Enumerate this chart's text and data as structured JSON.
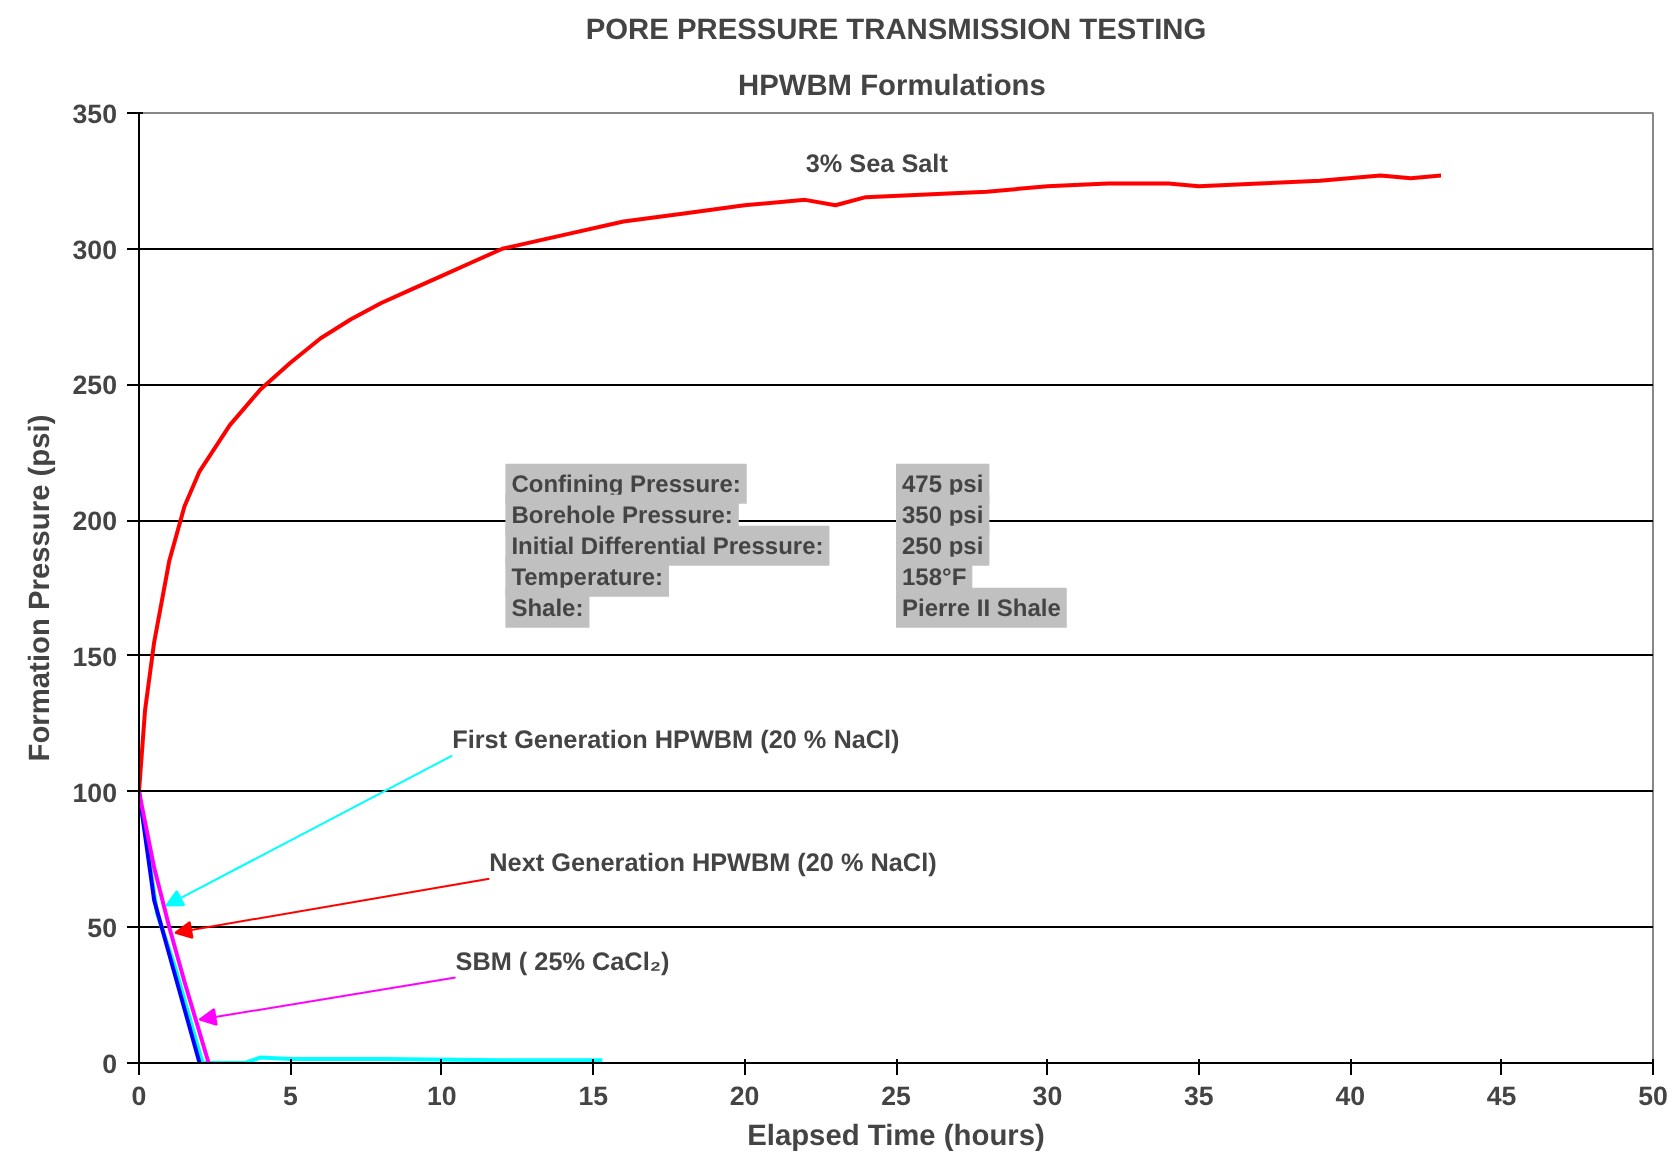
{
  "chart_data": {
    "type": "line",
    "title": "PORE PRESSURE TRANSMISSION TESTING",
    "subtitle": "HPWBM  Formulations",
    "xlabel": "Elapsed Time (hours)",
    "ylabel": "Formation Pressure (psi)",
    "xlim": [
      0,
      50
    ],
    "ylim": [
      0,
      350
    ],
    "xticks": [
      0,
      5,
      10,
      15,
      20,
      25,
      30,
      35,
      40,
      45,
      50
    ],
    "yticks": [
      0,
      50,
      100,
      150,
      200,
      250,
      300,
      350
    ],
    "grid": "y",
    "marker": "none",
    "line_style": "solid",
    "series": [
      {
        "color": "#ff0000",
        "x": [
          0,
          0.2,
          0.5,
          1,
          1.5,
          2,
          3,
          4,
          5,
          6,
          7,
          8,
          9,
          10,
          11,
          12,
          14,
          16,
          18,
          20,
          22,
          23,
          24,
          26,
          28,
          30,
          32,
          34,
          35,
          37,
          39,
          41,
          42,
          43
        ],
        "values": [
          100,
          130,
          155,
          185,
          205,
          218,
          235,
          248,
          258,
          267,
          274,
          280,
          285,
          290,
          295,
          300,
          305,
          310,
          313,
          316,
          318,
          316,
          319,
          320,
          321,
          323,
          324,
          324,
          323,
          324,
          325,
          327,
          326,
          327
        ]
      },
      {
        "color": "#00ffff",
        "x": [
          0,
          0.6,
          1.2,
          2.1,
          3.5,
          4,
          5,
          8,
          12,
          15.3
        ],
        "values": [
          100,
          55,
          35,
          0,
          0,
          2,
          1.5,
          1.5,
          1,
          1
        ]
      },
      {
        "color": "#0000ff",
        "x": [
          0,
          0.5,
          1,
          1.5,
          2
        ],
        "values": [
          100,
          60,
          40,
          20,
          0
        ]
      },
      {
        "color": "#ff00ff",
        "x": [
          0,
          0.5,
          1,
          1.5,
          1.9,
          2.3
        ],
        "values": [
          100,
          72,
          50,
          30,
          15,
          0
        ]
      }
    ],
    "annotations": [
      {
        "text": "3% Sea Salt",
        "x": 27.5,
        "y": 320
      },
      {
        "text": "First Generation HPWBM (20 % NaCl)",
        "x": 0.9,
        "y": 58
      },
      {
        "text": "Next Generation HPWBM (20 % NaCl)",
        "x": 1.2,
        "y": 48
      },
      {
        "text": "SBM ( 25% CaCl₂)",
        "x": 2,
        "y": 16
      },
      "Confining Pressure:",
      "475 psi",
      "Borehole Pressure:",
      "350 psi",
      "Initial Differential Pressure:",
      "250 psi",
      "Temperature:",
      "158°F",
      "Shale:",
      "Pierre II Shale"
    ]
  }
}
